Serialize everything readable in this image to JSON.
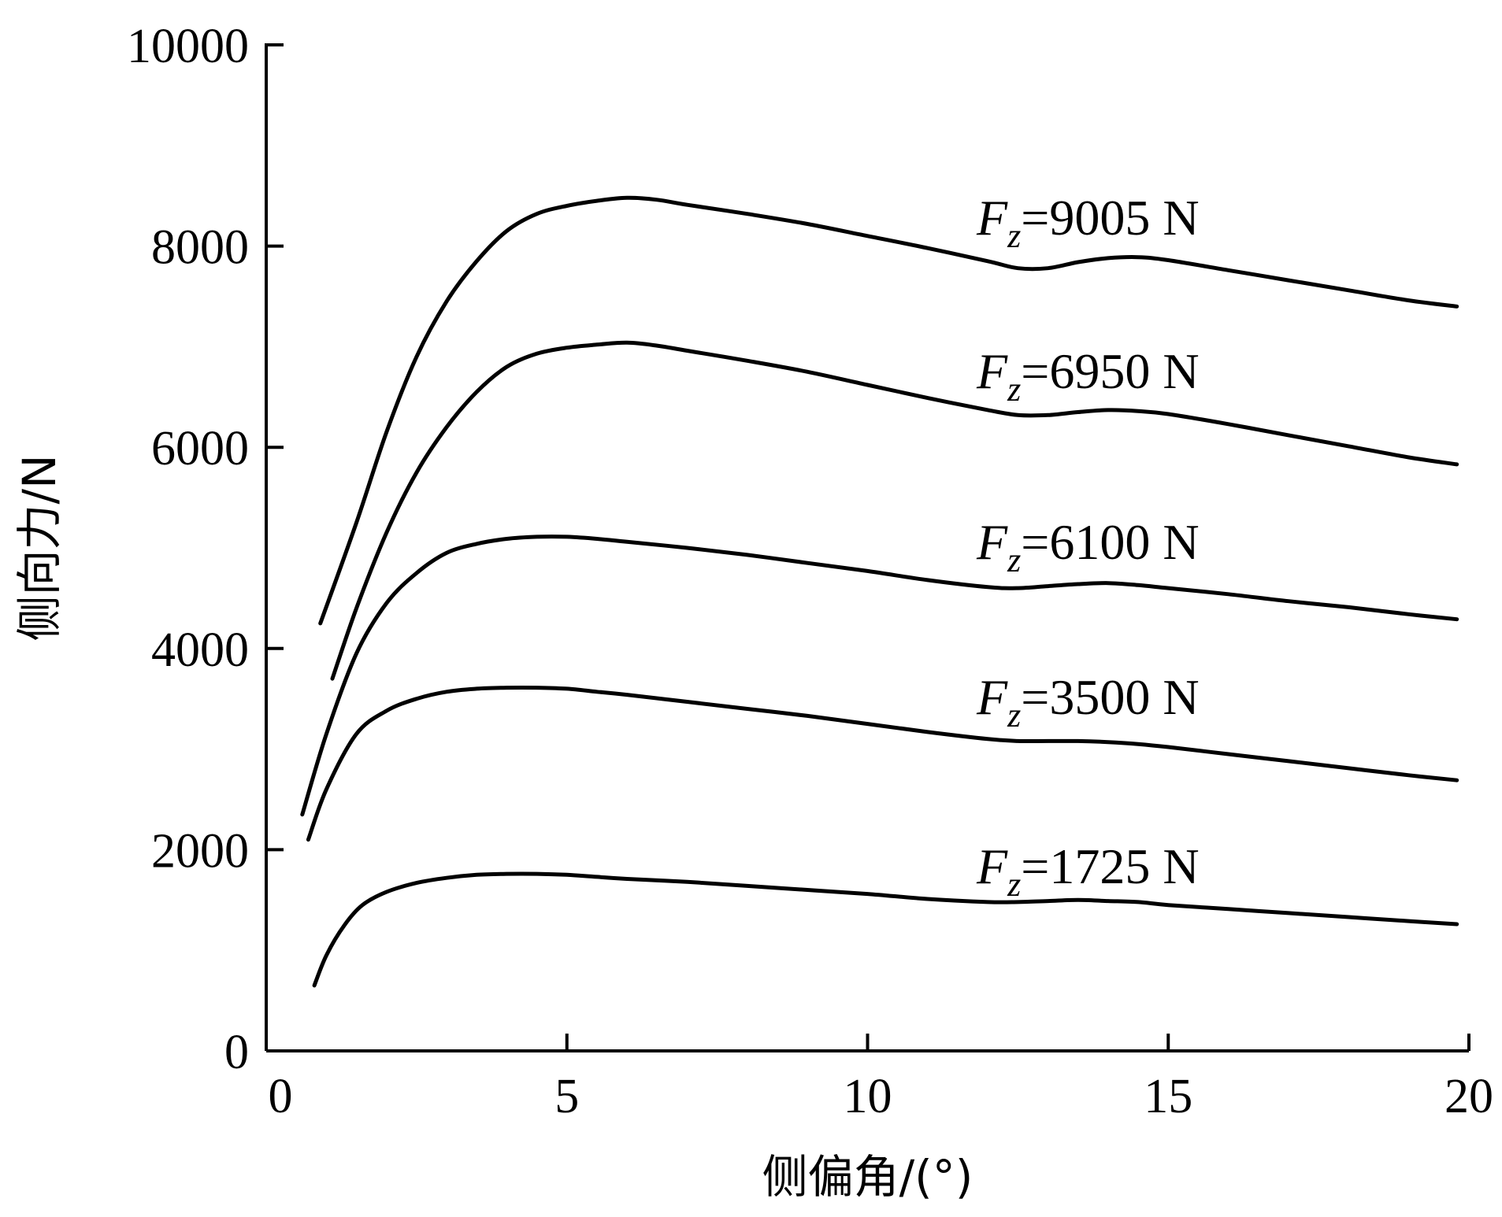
{
  "chart_data": {
    "type": "line",
    "xlabel": "侧偏角/(°)",
    "ylabel": "侧向力/N",
    "xlim": [
      0,
      20
    ],
    "ylim": [
      0,
      10000
    ],
    "xticks": [
      "0",
      "5",
      "10",
      "15",
      "20"
    ],
    "yticks": [
      "0",
      "2000",
      "4000",
      "6000",
      "8000",
      "10000"
    ],
    "grid": false,
    "series": [
      {
        "name": "Fz=9005 N",
        "label": {
          "var": "F",
          "sub": "z",
          "rest": "=9005 N"
        },
        "x": [
          0.9,
          1.5,
          2.0,
          2.5,
          3.0,
          3.5,
          4.0,
          4.5,
          5.0,
          5.5,
          6.0,
          6.5,
          7.0,
          8.0,
          9.0,
          10.0,
          11.0,
          12.0,
          12.5,
          13.0,
          13.5,
          14.0,
          14.5,
          15.0,
          16.0,
          17.0,
          18.0,
          19.0,
          19.8
        ],
        "y": [
          4250,
          5250,
          6150,
          6900,
          7450,
          7850,
          8150,
          8320,
          8400,
          8450,
          8480,
          8460,
          8410,
          8320,
          8220,
          8100,
          7980,
          7850,
          7780,
          7780,
          7840,
          7880,
          7890,
          7860,
          7760,
          7660,
          7560,
          7460,
          7400
        ]
      },
      {
        "name": "Fz=6950 N",
        "label": {
          "var": "F",
          "sub": "z",
          "rest": "=6950 N"
        },
        "x": [
          1.1,
          1.5,
          2.0,
          2.5,
          3.0,
          3.5,
          4.0,
          4.5,
          5.0,
          5.5,
          6.0,
          6.5,
          7.0,
          8.0,
          9.0,
          10.0,
          11.0,
          12.0,
          12.5,
          13.0,
          13.5,
          14.0,
          14.5,
          15.0,
          16.0,
          17.0,
          18.0,
          19.0,
          19.8
        ],
        "y": [
          3700,
          4400,
          5150,
          5750,
          6200,
          6550,
          6800,
          6930,
          6990,
          7020,
          7040,
          7010,
          6960,
          6860,
          6750,
          6620,
          6490,
          6370,
          6320,
          6320,
          6350,
          6370,
          6360,
          6330,
          6230,
          6120,
          6010,
          5900,
          5830
        ]
      },
      {
        "name": "Fz=6100 N",
        "label": {
          "var": "F",
          "sub": "z",
          "rest": "=6100 N"
        },
        "x": [
          0.6,
          1.0,
          1.5,
          2.0,
          2.5,
          3.0,
          3.5,
          4.0,
          4.5,
          5.0,
          5.5,
          6.0,
          7.0,
          8.0,
          9.0,
          10.0,
          11.0,
          12.0,
          12.5,
          13.0,
          13.5,
          14.0,
          14.5,
          15.0,
          16.0,
          17.0,
          18.0,
          19.0,
          19.8
        ],
        "y": [
          2350,
          3150,
          3950,
          4450,
          4750,
          4950,
          5040,
          5090,
          5110,
          5110,
          5090,
          5060,
          5000,
          4930,
          4850,
          4770,
          4680,
          4610,
          4600,
          4620,
          4640,
          4650,
          4630,
          4600,
          4540,
          4470,
          4410,
          4340,
          4290
        ]
      },
      {
        "name": "Fz=3500 N",
        "label": {
          "var": "F",
          "sub": "z",
          "rest": "=3500 N"
        },
        "x": [
          0.7,
          1.0,
          1.5,
          2.0,
          2.5,
          3.0,
          3.5,
          4.0,
          4.5,
          5.0,
          5.5,
          6.0,
          7.0,
          8.0,
          9.0,
          10.0,
          11.0,
          12.0,
          12.5,
          13.0,
          13.5,
          14.0,
          14.5,
          15.0,
          16.0,
          17.0,
          18.0,
          19.0,
          19.8
        ],
        "y": [
          2100,
          2600,
          3150,
          3380,
          3500,
          3570,
          3600,
          3610,
          3610,
          3600,
          3570,
          3540,
          3470,
          3400,
          3330,
          3250,
          3170,
          3100,
          3080,
          3080,
          3080,
          3070,
          3050,
          3020,
          2950,
          2880,
          2810,
          2740,
          2690
        ]
      },
      {
        "name": "Fz=1725 N",
        "label": {
          "var": "F",
          "sub": "z",
          "rest": "=1725 N"
        },
        "x": [
          0.8,
          1.0,
          1.3,
          1.6,
          2.0,
          2.5,
          3.0,
          3.5,
          4.0,
          4.5,
          5.0,
          5.5,
          6.0,
          7.0,
          8.0,
          9.0,
          10.0,
          11.0,
          12.0,
          12.5,
          13.0,
          13.5,
          14.0,
          14.5,
          15.0,
          16.0,
          17.0,
          18.0,
          19.0,
          19.8
        ],
        "y": [
          650,
          950,
          1250,
          1450,
          1580,
          1670,
          1720,
          1750,
          1760,
          1760,
          1750,
          1730,
          1710,
          1680,
          1640,
          1600,
          1560,
          1510,
          1480,
          1480,
          1490,
          1500,
          1490,
          1480,
          1450,
          1410,
          1370,
          1330,
          1290,
          1260
        ]
      }
    ]
  }
}
